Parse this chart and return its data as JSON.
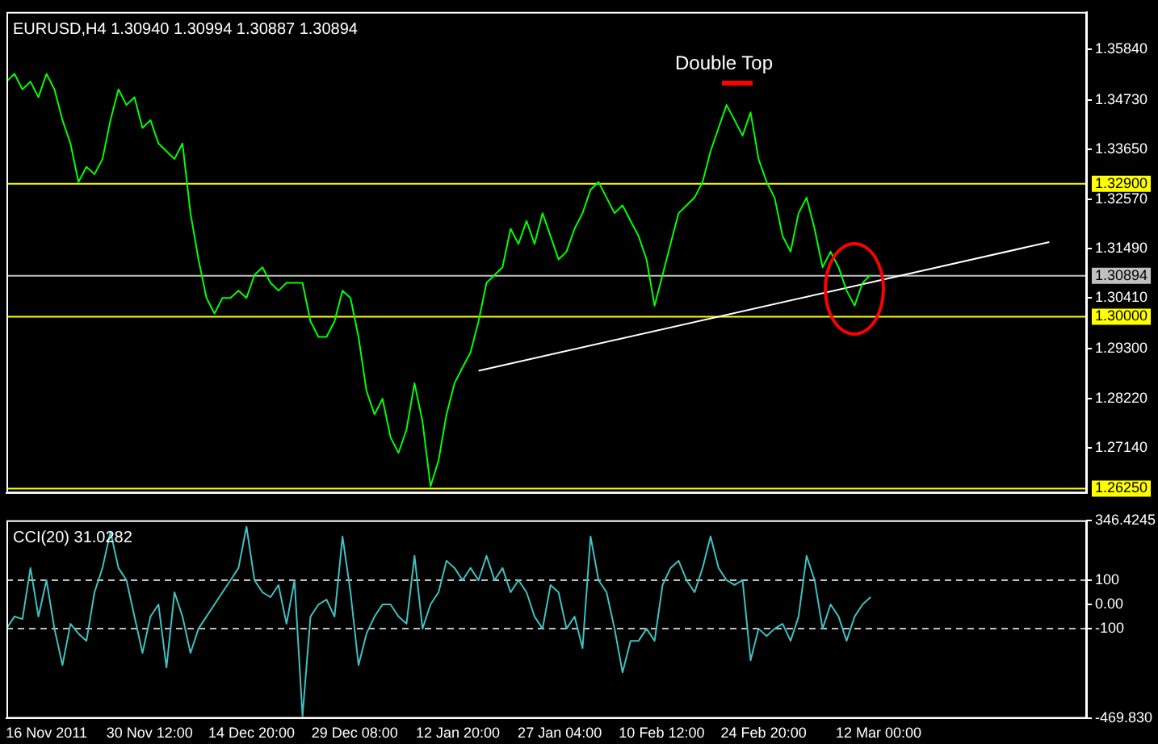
{
  "chart_data": [
    {
      "type": "line",
      "title": "EURUSD,H4 1.30940 1.30994 1.30887 1.30894",
      "x": [
        "2011-11-10T09:00",
        "2011-11-11T12:00",
        "2011-11-12T15:00",
        "2011-11-13T18:00",
        "2011-11-14T21:00",
        "2011-11-16T00:00",
        "2011-11-17T03:00",
        "2011-11-18T06:00",
        "2011-11-19T09:00",
        "2011-11-20T12:00",
        "2011-11-21T15:00",
        "2011-11-22T18:00",
        "2011-11-23T21:00",
        "2011-11-25T00:00",
        "2011-11-26T03:00",
        "2011-11-27T06:00",
        "2011-11-28T09:00",
        "2011-11-29T12:00",
        "2011-11-30T15:00",
        "2011-12-01T18:00",
        "2011-12-02T21:00",
        "2011-12-04T00:00",
        "2011-12-05T03:00",
        "2011-12-06T06:00",
        "2011-12-07T09:00",
        "2011-12-08T12:00",
        "2011-12-09T15:00",
        "2011-12-10T18:00",
        "2011-12-11T21:00",
        "2011-12-13T00:00",
        "2011-12-14T03:00",
        "2011-12-15T06:00",
        "2011-12-16T09:00",
        "2011-12-17T12:00",
        "2011-12-18T15:00",
        "2011-12-19T18:00",
        "2011-12-20T21:00",
        "2011-12-22T00:00",
        "2011-12-23T03:00",
        "2011-12-24T06:00",
        "2011-12-25T09:00",
        "2011-12-26T12:00",
        "2011-12-27T15:00",
        "2011-12-28T18:00",
        "2011-12-29T21:00",
        "2011-12-31T00:00",
        "2012-01-01T03:00",
        "2012-01-02T06:00",
        "2012-01-03T09:00",
        "2012-01-04T12:00",
        "2012-01-05T15:00",
        "2012-01-06T18:00",
        "2012-01-07T21:00",
        "2012-01-09T00:00",
        "2012-01-10T03:00",
        "2012-01-11T06:00",
        "2012-01-12T09:00",
        "2012-01-13T12:00",
        "2012-01-14T15:00",
        "2012-01-15T18:00",
        "2012-01-16T21:00",
        "2012-01-18T00:00",
        "2012-01-19T03:00",
        "2012-01-20T06:00",
        "2012-01-21T09:00",
        "2012-01-22T12:00",
        "2012-01-23T15:00",
        "2012-01-24T18:00",
        "2012-01-25T21:00",
        "2012-01-27T00:00",
        "2012-01-28T03:00",
        "2012-01-29T06:00",
        "2012-01-30T09:00",
        "2012-01-31T12:00",
        "2012-02-01T15:00",
        "2012-02-02T18:00",
        "2012-02-03T21:00",
        "2012-02-05T00:00",
        "2012-02-06T03:00",
        "2012-02-07T06:00",
        "2012-02-08T09:00",
        "2012-02-09T12:00",
        "2012-02-10T15:00",
        "2012-02-11T18:00",
        "2012-02-12T21:00",
        "2012-02-14T00:00",
        "2012-02-15T03:00",
        "2012-02-16T06:00",
        "2012-02-17T09:00",
        "2012-02-18T12:00",
        "2012-02-19T15:00",
        "2012-02-20T18:00",
        "2012-02-21T21:00",
        "2012-02-23T00:00",
        "2012-02-24T03:00",
        "2012-02-25T06:00",
        "2012-02-26T09:00",
        "2012-02-27T12:00",
        "2012-02-28T15:00",
        "2012-02-29T18:00",
        "2012-03-01T21:00",
        "2012-03-03T00:00",
        "2012-03-04T03:00",
        "2012-03-05T06:00",
        "2012-03-06T09:00",
        "2012-03-07T12:00",
        "2012-03-08T15:00",
        "2012-03-09T18:00",
        "2012-03-10T21:00"
      ],
      "series": [
        {
          "color": "#00ff00",
          "values": [
            1.3513,
            1.353,
            1.3496,
            1.3513,
            1.3479,
            1.353,
            1.3496,
            1.3429,
            1.3378,
            1.3294,
            1.3327,
            1.3311,
            1.3344,
            1.3429,
            1.3496,
            1.3462,
            1.3479,
            1.3412,
            1.3429,
            1.3378,
            1.3361,
            1.3344,
            1.3378,
            1.3226,
            1.3125,
            1.3041,
            1.3007,
            1.3041,
            1.3041,
            1.3057,
            1.3041,
            1.3091,
            1.3108,
            1.3074,
            1.3057,
            1.3074,
            1.3074,
            1.3074,
            1.299,
            1.2956,
            1.2956,
            1.299,
            1.3057,
            1.3041,
            1.2956,
            1.2838,
            1.2787,
            1.2821,
            1.2737,
            1.2703,
            1.2754,
            1.2855,
            1.2771,
            1.263,
            1.2686,
            1.2787,
            1.2855,
            1.2889,
            1.2922,
            1.299,
            1.3074,
            1.3091,
            1.3108,
            1.3192,
            1.3159,
            1.3209,
            1.3159,
            1.3226,
            1.3176,
            1.3125,
            1.3142,
            1.3192,
            1.3226,
            1.3277,
            1.3294,
            1.326,
            1.3226,
            1.3243,
            1.3209,
            1.3176,
            1.3125,
            1.3024,
            1.3091,
            1.3159,
            1.3226,
            1.3243,
            1.326,
            1.3294,
            1.3361,
            1.3412,
            1.3462,
            1.3429,
            1.3395,
            1.3446,
            1.3344,
            1.3294,
            1.326,
            1.3176,
            1.3142,
            1.3226,
            1.326,
            1.3192,
            1.3108,
            1.3142,
            1.3108,
            1.3057,
            1.3024,
            1.3074,
            1.3091
          ]
        },
        {
          "type": "line",
          "color": "#ffffff",
          "x": [
            "2012-01-15T18:00",
            "2012-04-05T00:00"
          ],
          "values": [
            1.2882,
            1.3163
          ]
        }
      ],
      "xlim": [
        "2011-11-10T09:00",
        "2012-04-10T07:00"
      ],
      "ylim": [
        1.2615,
        1.3665
      ],
      "yticks": [
        {
          "value": 1.2714,
          "label": "1.27140"
        },
        {
          "value": 1.2822,
          "label": "1.28220"
        },
        {
          "value": 1.293,
          "label": "1.29300"
        },
        {
          "value": 1.3041,
          "label": "1.30410"
        },
        {
          "value": 1.3149,
          "label": "1.31490"
        },
        {
          "value": 1.3257,
          "label": "1.32570"
        },
        {
          "value": 1.3365,
          "label": "1.33650"
        },
        {
          "value": 1.3473,
          "label": "1.34730"
        },
        {
          "value": 1.3584,
          "label": "1.35840"
        }
      ],
      "tick_labels": "y",
      "grid": false,
      "legend": false,
      "ref_lines": [
        {
          "axis": "y",
          "value": 1.329,
          "label": "1.32900",
          "color": "#ffff00"
        },
        {
          "axis": "y",
          "value": 1.30894,
          "label": "1.30894",
          "color": "#c0c0c0"
        },
        {
          "axis": "y",
          "value": 1.3,
          "label": "1.30000",
          "color": "#ffff00"
        },
        {
          "axis": "y",
          "value": 1.2625,
          "label": "1.26250",
          "color": "#ffff00"
        }
      ],
      "annotations": [
        "Double Top"
      ]
    },
    {
      "type": "line",
      "title": "CCI(20) 31.0282",
      "x": [
        "2011-11-10T09:00",
        "2011-11-11T12:00",
        "2011-11-12T15:00",
        "2011-11-13T18:00",
        "2011-11-14T21:00",
        "2011-11-16T00:00",
        "2011-11-17T03:00",
        "2011-11-18T06:00",
        "2011-11-19T09:00",
        "2011-11-20T12:00",
        "2011-11-21T15:00",
        "2011-11-22T18:00",
        "2011-11-23T21:00",
        "2011-11-25T00:00",
        "2011-11-26T03:00",
        "2011-11-27T06:00",
        "2011-11-28T09:00",
        "2011-11-29T12:00",
        "2011-11-30T15:00",
        "2011-12-01T18:00",
        "2011-12-02T21:00",
        "2011-12-04T00:00",
        "2011-12-05T03:00",
        "2011-12-06T06:00",
        "2011-12-07T09:00",
        "2011-12-08T12:00",
        "2011-12-09T15:00",
        "2011-12-10T18:00",
        "2011-12-11T21:00",
        "2011-12-13T00:00",
        "2011-12-14T03:00",
        "2011-12-15T06:00",
        "2011-12-16T09:00",
        "2011-12-17T12:00",
        "2011-12-18T15:00",
        "2011-12-19T18:00",
        "2011-12-20T21:00",
        "2011-12-22T00:00",
        "2011-12-23T03:00",
        "2011-12-24T06:00",
        "2011-12-25T09:00",
        "2011-12-26T12:00",
        "2011-12-27T15:00",
        "2011-12-28T18:00",
        "2011-12-29T21:00",
        "2011-12-31T00:00",
        "2012-01-01T03:00",
        "2012-01-02T06:00",
        "2012-01-03T09:00",
        "2012-01-04T12:00",
        "2012-01-05T15:00",
        "2012-01-06T18:00",
        "2012-01-07T21:00",
        "2012-01-09T00:00",
        "2012-01-10T03:00",
        "2012-01-11T06:00",
        "2012-01-12T09:00",
        "2012-01-13T12:00",
        "2012-01-14T15:00",
        "2012-01-15T18:00",
        "2012-01-16T21:00",
        "2012-01-18T00:00",
        "2012-01-19T03:00",
        "2012-01-20T06:00",
        "2012-01-21T09:00",
        "2012-01-22T12:00",
        "2012-01-23T15:00",
        "2012-01-24T18:00",
        "2012-01-25T21:00",
        "2012-01-27T00:00",
        "2012-01-28T03:00",
        "2012-01-29T06:00",
        "2012-01-30T09:00",
        "2012-01-31T12:00",
        "2012-02-01T15:00",
        "2012-02-02T18:00",
        "2012-02-03T21:00",
        "2012-02-05T00:00",
        "2012-02-06T03:00",
        "2012-02-07T06:00",
        "2012-02-08T09:00",
        "2012-02-09T12:00",
        "2012-02-10T15:00",
        "2012-02-11T18:00",
        "2012-02-12T21:00",
        "2012-02-14T00:00",
        "2012-02-15T03:00",
        "2012-02-16T06:00",
        "2012-02-17T09:00",
        "2012-02-18T12:00",
        "2012-02-19T15:00",
        "2012-02-20T18:00",
        "2012-02-21T21:00",
        "2012-02-23T00:00",
        "2012-02-24T03:00",
        "2012-02-25T06:00",
        "2012-02-26T09:00",
        "2012-02-27T12:00",
        "2012-02-28T15:00",
        "2012-02-29T18:00",
        "2012-03-01T21:00",
        "2012-03-03T00:00",
        "2012-03-04T03:00",
        "2012-03-05T06:00",
        "2012-03-06T09:00",
        "2012-03-07T12:00",
        "2012-03-08T15:00",
        "2012-03-09T18:00",
        "2012-03-10T21:00"
      ],
      "series": [
        {
          "color": "#40c0c0",
          "values": [
            -100,
            -50,
            -60,
            150,
            -50,
            100,
            -100,
            -250,
            -80,
            -120,
            -150,
            50,
            150,
            300,
            150,
            100,
            -50,
            -200,
            -50,
            0,
            -260,
            50,
            -50,
            -200,
            -100,
            -50,
            0,
            50,
            100,
            150,
            320,
            100,
            50,
            30,
            80,
            -80,
            100,
            -460,
            -50,
            0,
            20,
            -50,
            280,
            50,
            -250,
            -120,
            -50,
            0,
            0,
            -50,
            -80,
            200,
            -100,
            0,
            50,
            180,
            150,
            100,
            150,
            100,
            200,
            100,
            150,
            50,
            100,
            50,
            -50,
            -100,
            80,
            50,
            -100,
            -50,
            -180,
            280,
            100,
            50,
            -100,
            -280,
            -150,
            -150,
            -100,
            -150,
            80,
            150,
            180,
            100,
            50,
            150,
            280,
            150,
            100,
            80,
            100,
            -230,
            -100,
            -130,
            -100,
            -80,
            -150,
            -50,
            200,
            100,
            -100,
            0,
            -50,
            -150,
            -50,
            0,
            30
          ]
        }
      ],
      "xlim": [
        "2011-11-10T09:00",
        "2012-04-10T07:00"
      ],
      "ylim": [
        -469.83,
        346.4245
      ],
      "xticks": [
        {
          "value": "2011-11-16T00:00",
          "label": "16 Nov 2011"
        },
        {
          "value": "2011-11-30T12:00",
          "label": "30 Nov 12:00"
        },
        {
          "value": "2011-12-14T20:00",
          "label": "14 Dec 20:00"
        },
        {
          "value": "2011-12-29T08:00",
          "label": "29 Dec 08:00"
        },
        {
          "value": "2012-01-12T20:00",
          "label": "12 Jan 20:00"
        },
        {
          "value": "2012-01-27T04:00",
          "label": "27 Jan 04:00"
        },
        {
          "value": "2012-02-10T12:00",
          "label": "10 Feb 12:00"
        },
        {
          "value": "2012-02-24T20:00",
          "label": "24 Feb 20:00"
        },
        {
          "value": "2012-03-12T00:00",
          "label": "12 Mar 00:00"
        }
      ],
      "yticks": [
        {
          "value": -469.83,
          "label": "-469.830"
        },
        -100,
        {
          "value": 0,
          "label": "0.00"
        },
        100,
        346.4245
      ],
      "grid": false,
      "legend": false,
      "ref_lines": [
        {
          "axis": "y",
          "value": 100,
          "color": "#c0c0c0",
          "line_style": "dashed"
        },
        {
          "axis": "y",
          "value": -100,
          "color": "#c0c0c0",
          "line_style": "dashed"
        }
      ]
    }
  ]
}
